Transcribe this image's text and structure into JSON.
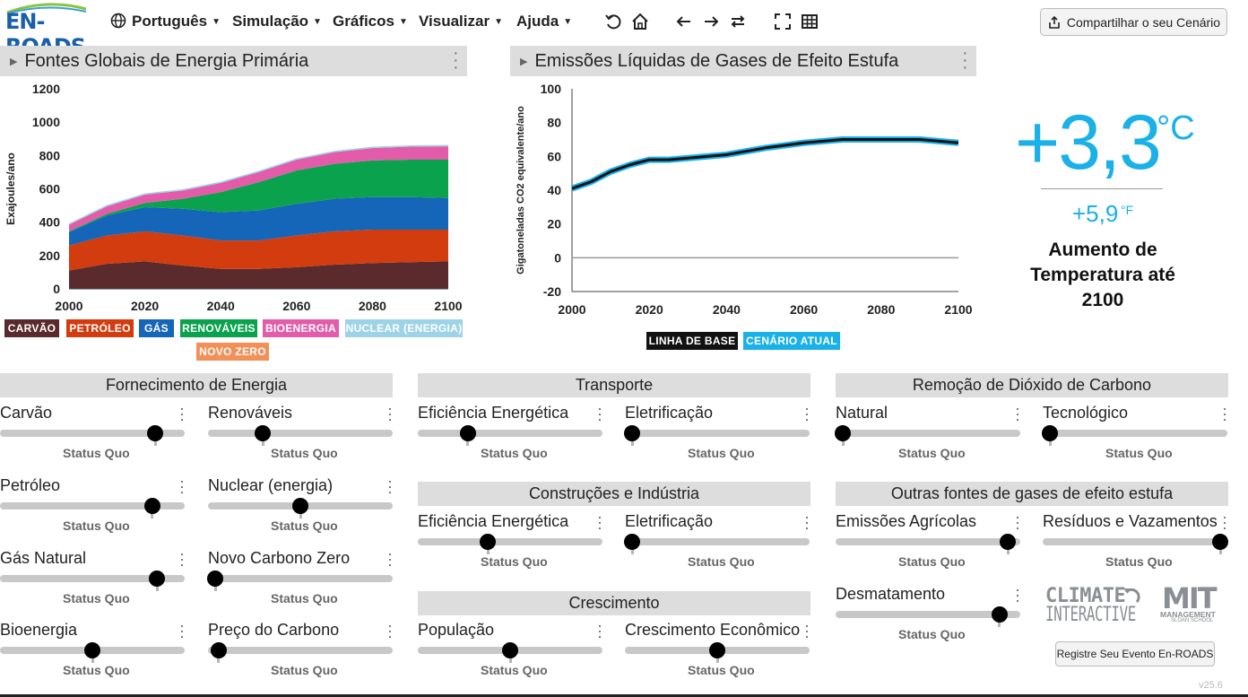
{
  "app": {
    "logo_text": "EN-ROADS"
  },
  "menu": [
    {
      "label": "Português",
      "icon": "globe-icon"
    },
    {
      "label": "Simulação"
    },
    {
      "label": "Gráficos"
    },
    {
      "label": "Visualizar"
    },
    {
      "label": "Ajuda"
    }
  ],
  "toolbar_icons": [
    "undo-icon",
    "home-icon",
    "arrow-left-icon",
    "arrow-right-icon",
    "swap-icon",
    "fullscreen-icon",
    "table-icon"
  ],
  "share_button": "Compartilhar o seu Cenário",
  "chart1": {
    "title": "Fontes Globais de Energia Primária",
    "ylabel": "Exajoules/ano",
    "legend": [
      "CARVÃO",
      "PETRÓLEO",
      "GÁS",
      "RENOVÁVEIS",
      "BIOENERGIA",
      "NUCLEAR (ENERGIA)",
      "NOVO ZERO"
    ],
    "legend_colors": [
      "#5a2a2d",
      "#d23c0f",
      "#1565b8",
      "#0aa24c",
      "#e25caa",
      "#9dd3e6",
      "#f39058"
    ]
  },
  "chart2": {
    "title": "Emissões Líquidas de Gases de Efeito Estufa",
    "ylabel": "Gigatoneladas CO2 equivalente/ano",
    "legend": [
      "LINHA DE BASE",
      "CENÁRIO ATUAL"
    ],
    "legend_colors": [
      "#111111",
      "#1ab0e8"
    ]
  },
  "chart_data": [
    {
      "type": "area",
      "title": "Fontes Globais de Energia Primária",
      "ylabel": "Exajoules/ano",
      "xlabel": "",
      "x": [
        2000,
        2010,
        2020,
        2030,
        2040,
        2050,
        2060,
        2070,
        2080,
        2090,
        2100
      ],
      "xticks": [
        2000,
        2020,
        2040,
        2060,
        2080,
        2100
      ],
      "yticks": [
        0,
        200,
        400,
        600,
        800,
        1000,
        1200
      ],
      "ylim": [
        0,
        1200
      ],
      "series": [
        {
          "name": "CARVÃO",
          "color": "#5a2a2d",
          "values": [
            110,
            150,
            165,
            140,
            120,
            120,
            130,
            145,
            155,
            160,
            165
          ]
        },
        {
          "name": "PETRÓLEO",
          "color": "#d23c0f",
          "values": [
            150,
            170,
            180,
            180,
            170,
            170,
            190,
            200,
            200,
            195,
            190
          ]
        },
        {
          "name": "GÁS",
          "color": "#1565b8",
          "values": [
            80,
            120,
            145,
            160,
            170,
            180,
            190,
            195,
            195,
            195,
            190
          ]
        },
        {
          "name": "RENOVÁVEIS",
          "color": "#0aa24c",
          "values": [
            5,
            10,
            25,
            60,
            120,
            170,
            200,
            210,
            220,
            225,
            230
          ]
        },
        {
          "name": "BIOENERGIA",
          "color": "#e25caa",
          "values": [
            40,
            45,
            50,
            50,
            55,
            60,
            65,
            70,
            75,
            78,
            80
          ]
        },
        {
          "name": "NUCLEAR (ENERGIA)",
          "color": "#9dd3e6",
          "values": [
            8,
            8,
            8,
            8,
            8,
            8,
            8,
            8,
            8,
            8,
            8
          ]
        },
        {
          "name": "NOVO ZERO",
          "color": "#f39058",
          "values": [
            0,
            0,
            0,
            0,
            0,
            0,
            0,
            0,
            0,
            0,
            0
          ]
        }
      ]
    },
    {
      "type": "line",
      "title": "Emissões Líquidas de Gases de Efeito Estufa",
      "ylabel": "Gigatoneladas CO2 equivalente/ano",
      "xlabel": "",
      "x": [
        2000,
        2005,
        2010,
        2015,
        2020,
        2025,
        2030,
        2040,
        2050,
        2060,
        2070,
        2080,
        2090,
        2100
      ],
      "xticks": [
        2000,
        2020,
        2040,
        2060,
        2080,
        2100
      ],
      "yticks": [
        -20,
        0,
        20,
        40,
        60,
        80,
        100
      ],
      "ylim": [
        -20,
        100
      ],
      "series": [
        {
          "name": "LINHA DE BASE",
          "color": "#111111",
          "values": [
            41,
            45,
            51,
            55,
            58,
            58,
            59,
            61,
            65,
            68,
            70,
            70,
            70,
            68
          ]
        },
        {
          "name": "CENÁRIO ATUAL",
          "color": "#1ab0e8",
          "values": [
            41,
            45,
            51,
            55,
            58,
            58,
            59,
            61,
            65,
            68,
            70,
            70,
            70,
            68
          ]
        }
      ]
    }
  ],
  "temperature": {
    "celsius": "+3,3",
    "celsius_unit": "°C",
    "fahrenheit": "+5,9",
    "fahrenheit_unit": "°F",
    "label": "Aumento de Temperatura até 2100"
  },
  "sections": [
    {
      "title": "Fornecimento de Energia"
    },
    {
      "title": "Transporte"
    },
    {
      "title": "Remoção de Dióxido de Carbono"
    },
    {
      "title": "Construções e Indústria"
    },
    {
      "title": "Outras fontes de gases de efeito estufa"
    },
    {
      "title": "Crescimento"
    }
  ],
  "sliders": [
    {
      "label": "Carvão",
      "status": "Status Quo",
      "level": 0.87,
      "default": 0.87
    },
    {
      "label": "Renováveis",
      "status": "Status Quo",
      "level": 0.28,
      "default": 0.28
    },
    {
      "label": "Petróleo",
      "status": "Status Quo",
      "level": 0.85,
      "default": 0.85
    },
    {
      "label": "Nuclear (energia)",
      "status": "Status Quo",
      "level": 0.5,
      "default": 0.5
    },
    {
      "label": "Gás Natural",
      "status": "Status Quo",
      "level": 0.88,
      "default": 0.88
    },
    {
      "label": "Novo Carbono Zero",
      "status": "Status Quo",
      "level": 0.0,
      "default": 0.0
    },
    {
      "label": "Bioenergia",
      "status": "Status Quo",
      "level": 0.5,
      "default": 0.5
    },
    {
      "label": "Preço do Carbono",
      "status": "Status Quo",
      "level": 0.02,
      "default": 0.02
    },
    {
      "label": "Eficiência Energética",
      "status": "Status Quo",
      "level": 0.25,
      "default": 0.25
    },
    {
      "label": "Eletrificação",
      "status": "Status Quo",
      "level": 0.0,
      "default": 0.0
    },
    {
      "label": "Eficiência Energética",
      "status": "Status Quo",
      "level": 0.37,
      "default": 0.37
    },
    {
      "label": "Eletrificação",
      "status": "Status Quo",
      "level": 0.0,
      "default": 0.0
    },
    {
      "label": "População",
      "status": "Status Quo",
      "level": 0.5,
      "default": 0.5
    },
    {
      "label": "Crescimento Econômico",
      "status": "Status Quo",
      "level": 0.5,
      "default": 0.5
    },
    {
      "label": "Natural",
      "status": "Status Quo",
      "level": 0.0,
      "default": 0.0
    },
    {
      "label": "Tecnológico",
      "status": "Status Quo",
      "level": 0.0,
      "default": 0.0
    },
    {
      "label": "Emissões Agrícolas",
      "status": "Status Quo",
      "level": 0.97,
      "default": 0.97
    },
    {
      "label": "Resíduos e Vazamentos",
      "status": "Status Quo",
      "level": 1.0,
      "default": 1.0
    },
    {
      "label": "Desmatamento",
      "status": "Status Quo",
      "level": 0.92,
      "default": 0.92
    }
  ],
  "logos": {
    "climate_interactive": [
      "CLIMATE",
      "INTERACTIVE"
    ],
    "mit": [
      "MIT",
      "MANAGEMENT",
      "SLOAN SCHOOL"
    ]
  },
  "event_button": "Registre Seu Evento En-ROADS",
  "version": "v25.6"
}
